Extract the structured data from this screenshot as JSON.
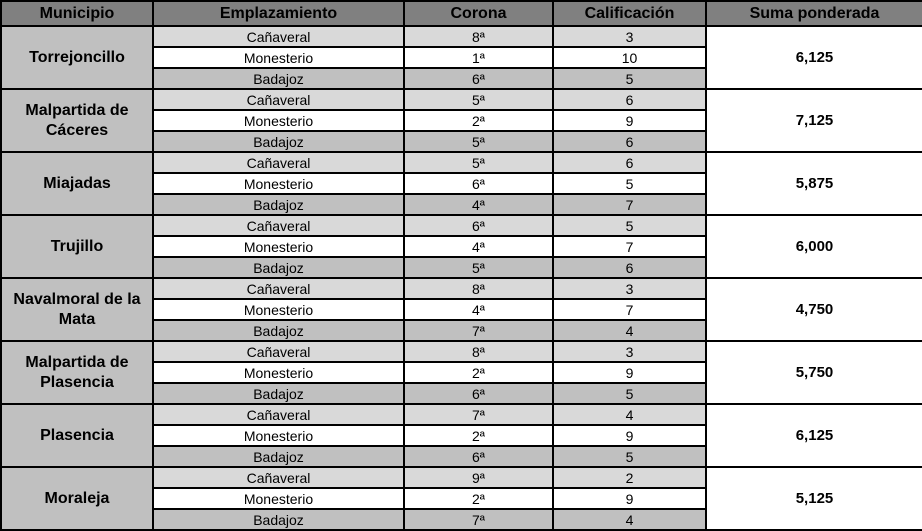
{
  "colors": {
    "header_bg": "#808080",
    "header_text": "#FFFFFF",
    "municipio_bg": "#C0C0C0",
    "row_canaveral_bg": "#D9D9D9",
    "row_monesterio_bg": "#FFFFFF",
    "row_badajoz_bg": "#C0C0C0",
    "suma_bg": "#FFFFFF",
    "border": "#000000"
  },
  "table": {
    "columns": [
      {
        "label": "Municipio"
      },
      {
        "label": "Emplazamiento"
      },
      {
        "label": "Corona"
      },
      {
        "label": "Calificación"
      },
      {
        "label": "Suma ponderada"
      }
    ],
    "groups": [
      {
        "municipio": "Torrejoncillo",
        "suma": "6,125",
        "rows": [
          {
            "emplazamiento": "Cañaveral",
            "corona": "8ª",
            "calificacion": "3"
          },
          {
            "emplazamiento": "Monesterio",
            "corona": "1ª",
            "calificacion": "10"
          },
          {
            "emplazamiento": "Badajoz",
            "corona": "6ª",
            "calificacion": "5"
          }
        ]
      },
      {
        "municipio": "Malpartida de Cáceres",
        "suma": "7,125",
        "rows": [
          {
            "emplazamiento": "Cañaveral",
            "corona": "5ª",
            "calificacion": "6"
          },
          {
            "emplazamiento": "Monesterio",
            "corona": "2ª",
            "calificacion": "9"
          },
          {
            "emplazamiento": "Badajoz",
            "corona": "5ª",
            "calificacion": "6"
          }
        ]
      },
      {
        "municipio": "Miajadas",
        "suma": "5,875",
        "rows": [
          {
            "emplazamiento": "Cañaveral",
            "corona": "5ª",
            "calificacion": "6"
          },
          {
            "emplazamiento": "Monesterio",
            "corona": "6ª",
            "calificacion": "5"
          },
          {
            "emplazamiento": "Badajoz",
            "corona": "4ª",
            "calificacion": "7"
          }
        ]
      },
      {
        "municipio": "Trujillo",
        "suma": "6,000",
        "rows": [
          {
            "emplazamiento": "Cañaveral",
            "corona": "6ª",
            "calificacion": "5"
          },
          {
            "emplazamiento": "Monesterio",
            "corona": "4ª",
            "calificacion": "7"
          },
          {
            "emplazamiento": "Badajoz",
            "corona": "5ª",
            "calificacion": "6"
          }
        ]
      },
      {
        "municipio": "Navalmoral de la Mata",
        "suma": "4,750",
        "rows": [
          {
            "emplazamiento": "Cañaveral",
            "corona": "8ª",
            "calificacion": "3"
          },
          {
            "emplazamiento": "Monesterio",
            "corona": "4ª",
            "calificacion": "7"
          },
          {
            "emplazamiento": "Badajoz",
            "corona": "7ª",
            "calificacion": "4"
          }
        ]
      },
      {
        "municipio": "Malpartida de Plasencia",
        "suma": "5,750",
        "rows": [
          {
            "emplazamiento": "Cañaveral",
            "corona": "8ª",
            "calificacion": "3"
          },
          {
            "emplazamiento": "Monesterio",
            "corona": "2ª",
            "calificacion": "9"
          },
          {
            "emplazamiento": "Badajoz",
            "corona": "6ª",
            "calificacion": "5"
          }
        ]
      },
      {
        "municipio": "Plasencia",
        "suma": "6,125",
        "rows": [
          {
            "emplazamiento": "Cañaveral",
            "corona": "7ª",
            "calificacion": "4"
          },
          {
            "emplazamiento": "Monesterio",
            "corona": "2ª",
            "calificacion": "9"
          },
          {
            "emplazamiento": "Badajoz",
            "corona": "6ª",
            "calificacion": "5"
          }
        ]
      },
      {
        "municipio": "Moraleja",
        "suma": "5,125",
        "rows": [
          {
            "emplazamiento": "Cañaveral",
            "corona": "9ª",
            "calificacion": "2"
          },
          {
            "emplazamiento": "Monesterio",
            "corona": "2ª",
            "calificacion": "9"
          },
          {
            "emplazamiento": "Badajoz",
            "corona": "7ª",
            "calificacion": "4"
          }
        ]
      }
    ]
  }
}
